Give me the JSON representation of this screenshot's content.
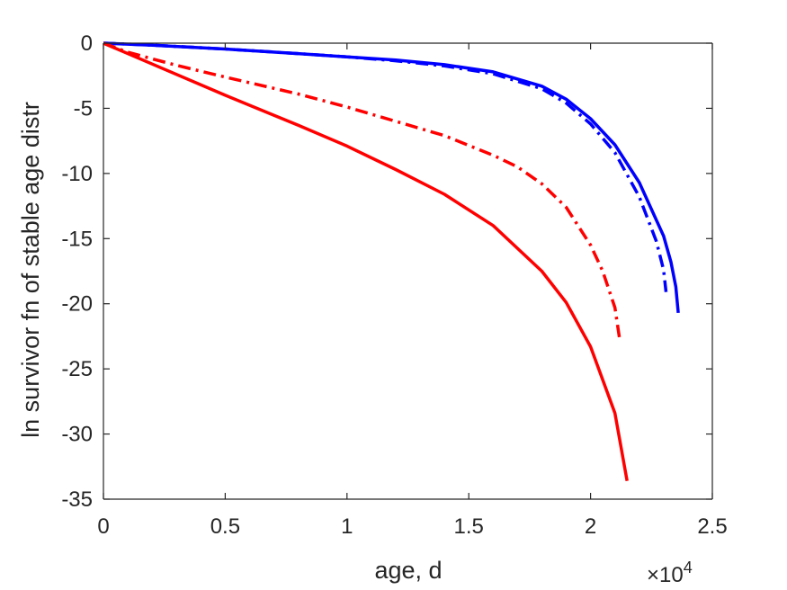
{
  "chart_data": {
    "type": "line",
    "title": "",
    "xlabel": "age, d",
    "ylabel": "ln survivor fn of stable age distr",
    "x_exponent_label": "×10",
    "x_exponent_power": "4",
    "xlim": [
      0,
      2.5
    ],
    "ylim": [
      -35,
      0
    ],
    "x_scale_factor": 10000,
    "x_ticks": [
      0,
      0.5,
      1,
      1.5,
      2,
      2.5
    ],
    "x_tick_labels": [
      "0",
      "0.5",
      "1",
      "1.5",
      "2",
      "2.5"
    ],
    "y_ticks": [
      0,
      -5,
      -10,
      -15,
      -20,
      -25,
      -30,
      -35
    ],
    "y_tick_labels": [
      "0",
      "-5",
      "-10",
      "-15",
      "-20",
      "-25",
      "-30",
      "-35"
    ],
    "grid": false,
    "legend": "none",
    "series": [
      {
        "color": "#0000ff",
        "dash": "solid",
        "x": [
          0,
          0.2,
          0.5,
          0.8,
          1.0,
          1.2,
          1.4,
          1.6,
          1.8,
          1.9,
          2.0,
          2.1,
          2.2,
          2.3,
          2.33,
          2.35,
          2.36
        ],
        "y": [
          0,
          -0.15,
          -0.45,
          -0.8,
          -1.05,
          -1.3,
          -1.65,
          -2.2,
          -3.3,
          -4.3,
          -5.8,
          -7.8,
          -10.7,
          -14.8,
          -16.8,
          -18.7,
          -20.7
        ]
      },
      {
        "color": "#0000ff",
        "dash": "dash-dot",
        "x": [
          0,
          0.2,
          0.5,
          0.8,
          1.0,
          1.2,
          1.4,
          1.6,
          1.8,
          1.9,
          2.0,
          2.1,
          2.2,
          2.27,
          2.3,
          2.31
        ],
        "y": [
          0,
          -0.15,
          -0.45,
          -0.8,
          -1.05,
          -1.35,
          -1.75,
          -2.35,
          -3.5,
          -4.6,
          -6.2,
          -8.4,
          -11.8,
          -15.2,
          -17.4,
          -19.1
        ]
      },
      {
        "color": "#ff0000",
        "dash": "dash-dot",
        "x": [
          0,
          0.1,
          0.3,
          0.5,
          0.8,
          1.0,
          1.2,
          1.4,
          1.6,
          1.7,
          1.8,
          1.9,
          2.0,
          2.05,
          2.1,
          2.12
        ],
        "y": [
          0,
          -0.7,
          -1.7,
          -2.6,
          -3.9,
          -4.9,
          -6.0,
          -7.1,
          -8.6,
          -9.5,
          -10.8,
          -12.6,
          -15.5,
          -17.5,
          -20.3,
          -22.8
        ]
      },
      {
        "color": "#ff0000",
        "dash": "solid",
        "x": [
          0,
          0.2,
          0.5,
          0.8,
          1.0,
          1.2,
          1.4,
          1.6,
          1.8,
          1.9,
          2.0,
          2.1,
          2.15
        ],
        "y": [
          0,
          -1.6,
          -4.0,
          -6.3,
          -7.9,
          -9.7,
          -11.6,
          -14.0,
          -17.5,
          -19.9,
          -23.3,
          -28.4,
          -33.6
        ]
      }
    ]
  }
}
